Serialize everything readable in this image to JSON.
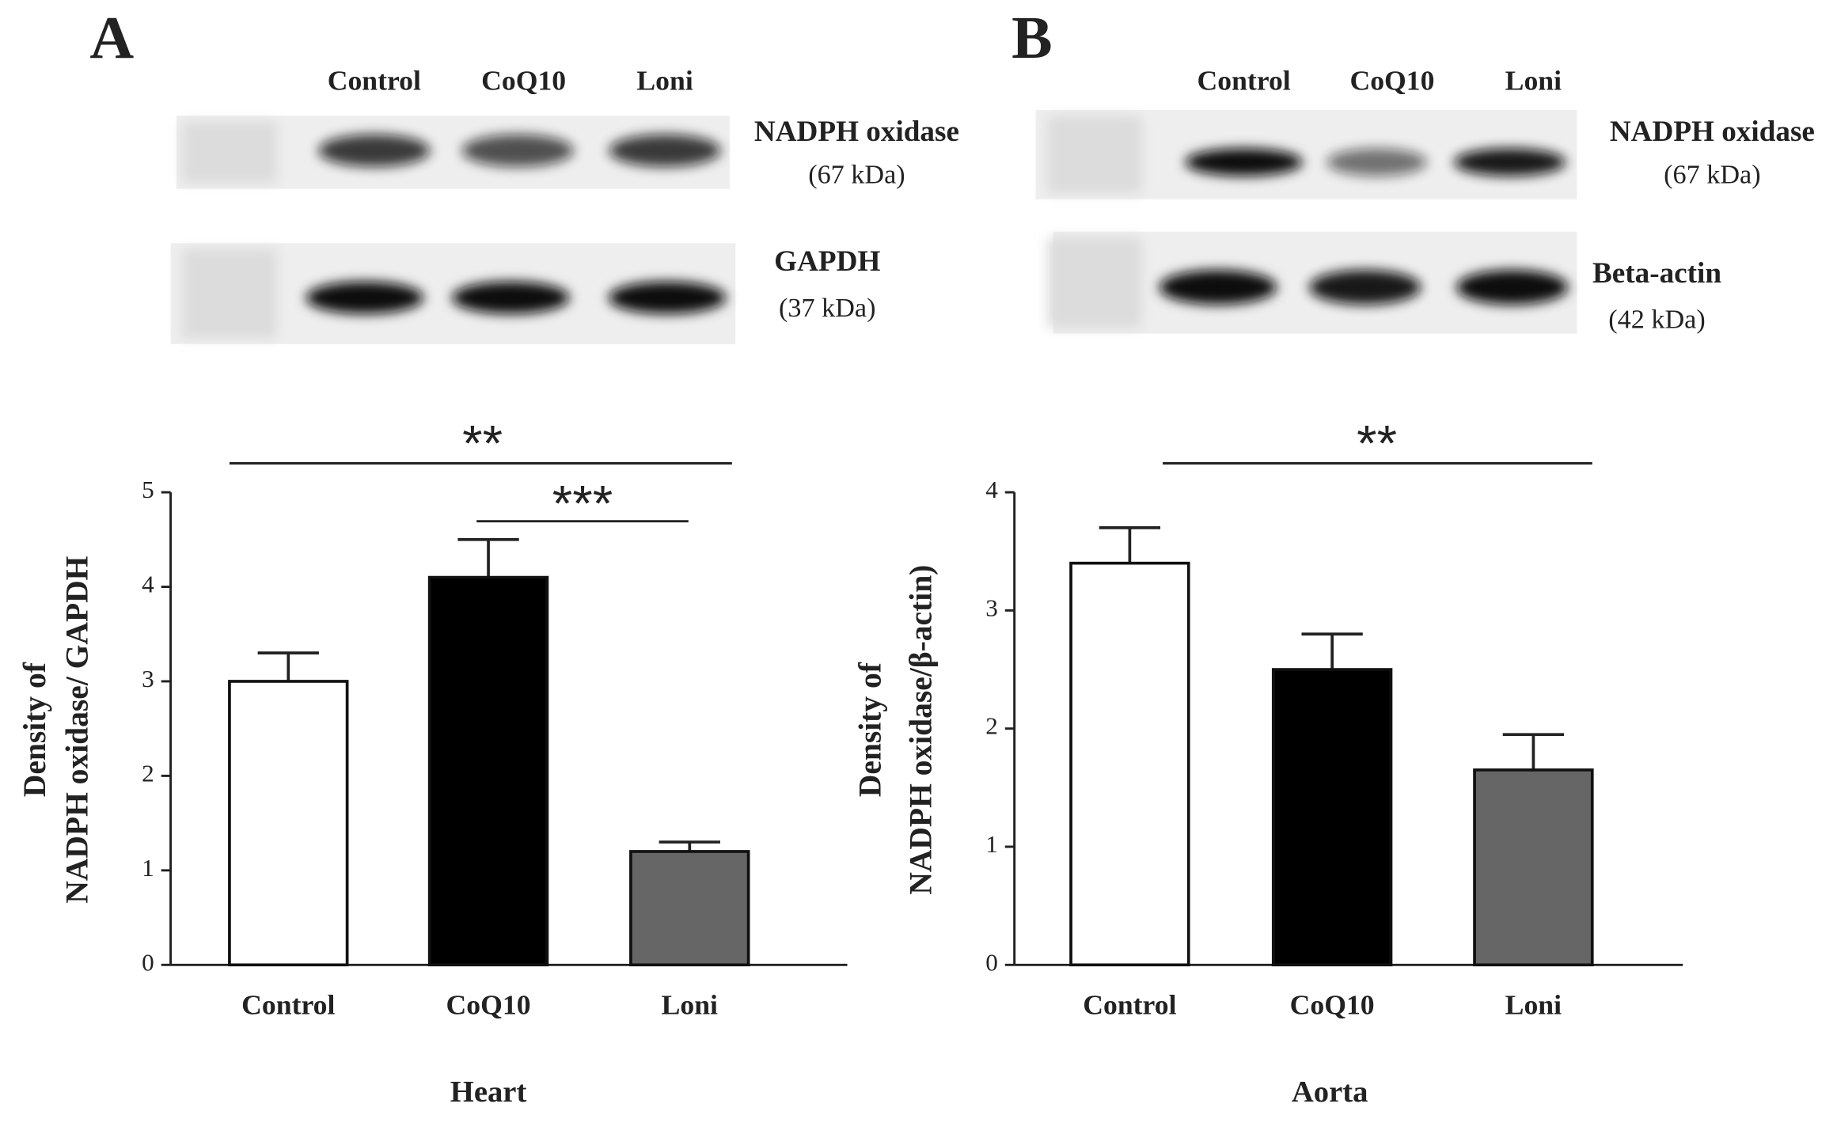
{
  "chart_data": [
    {
      "type": "bar",
      "panel": "A",
      "title": "Heart",
      "y_label": [
        "Density of",
        "NADPH oxidase/ GAPDH"
      ],
      "categories": [
        "Control",
        "CoQ10",
        "Loni"
      ],
      "values": [
        3.0,
        4.1,
        1.2
      ],
      "errors": [
        0.3,
        0.4,
        0.1
      ],
      "colors": [
        "#ffffff",
        "#000000",
        "#666666"
      ],
      "ylim": [
        0,
        5
      ],
      "yticks": [
        0,
        1,
        2,
        3,
        4,
        5
      ],
      "significance": [
        "**",
        "***"
      ],
      "blot": {
        "lanes": [
          "Control",
          "CoQ10",
          "Loni"
        ],
        "rows": [
          {
            "protein": "NADPH oxidase",
            "size": "(67 kDa)"
          },
          {
            "protein": "GAPDH",
            "size": "(37 kDa)"
          }
        ]
      }
    },
    {
      "type": "bar",
      "panel": "B",
      "title": "Aorta",
      "y_label": [
        "Density of",
        "NADPH oxidase/β-actin)"
      ],
      "categories": [
        "Control",
        "CoQ10",
        "Loni"
      ],
      "values": [
        3.4,
        2.5,
        1.65
      ],
      "errors": [
        0.3,
        0.3,
        0.3
      ],
      "colors": [
        "#ffffff",
        "#000000",
        "#666666"
      ],
      "ylim": [
        0,
        4
      ],
      "yticks": [
        0,
        1,
        2,
        3,
        4
      ],
      "significance": [
        "**"
      ],
      "blot": {
        "lanes": [
          "Control",
          "CoQ10",
          "Loni"
        ],
        "rows": [
          {
            "protein": "NADPH oxidase",
            "size": "(67 kDa)"
          },
          {
            "protein": "Beta-actin",
            "size": "(42 kDa)"
          }
        ]
      }
    }
  ]
}
